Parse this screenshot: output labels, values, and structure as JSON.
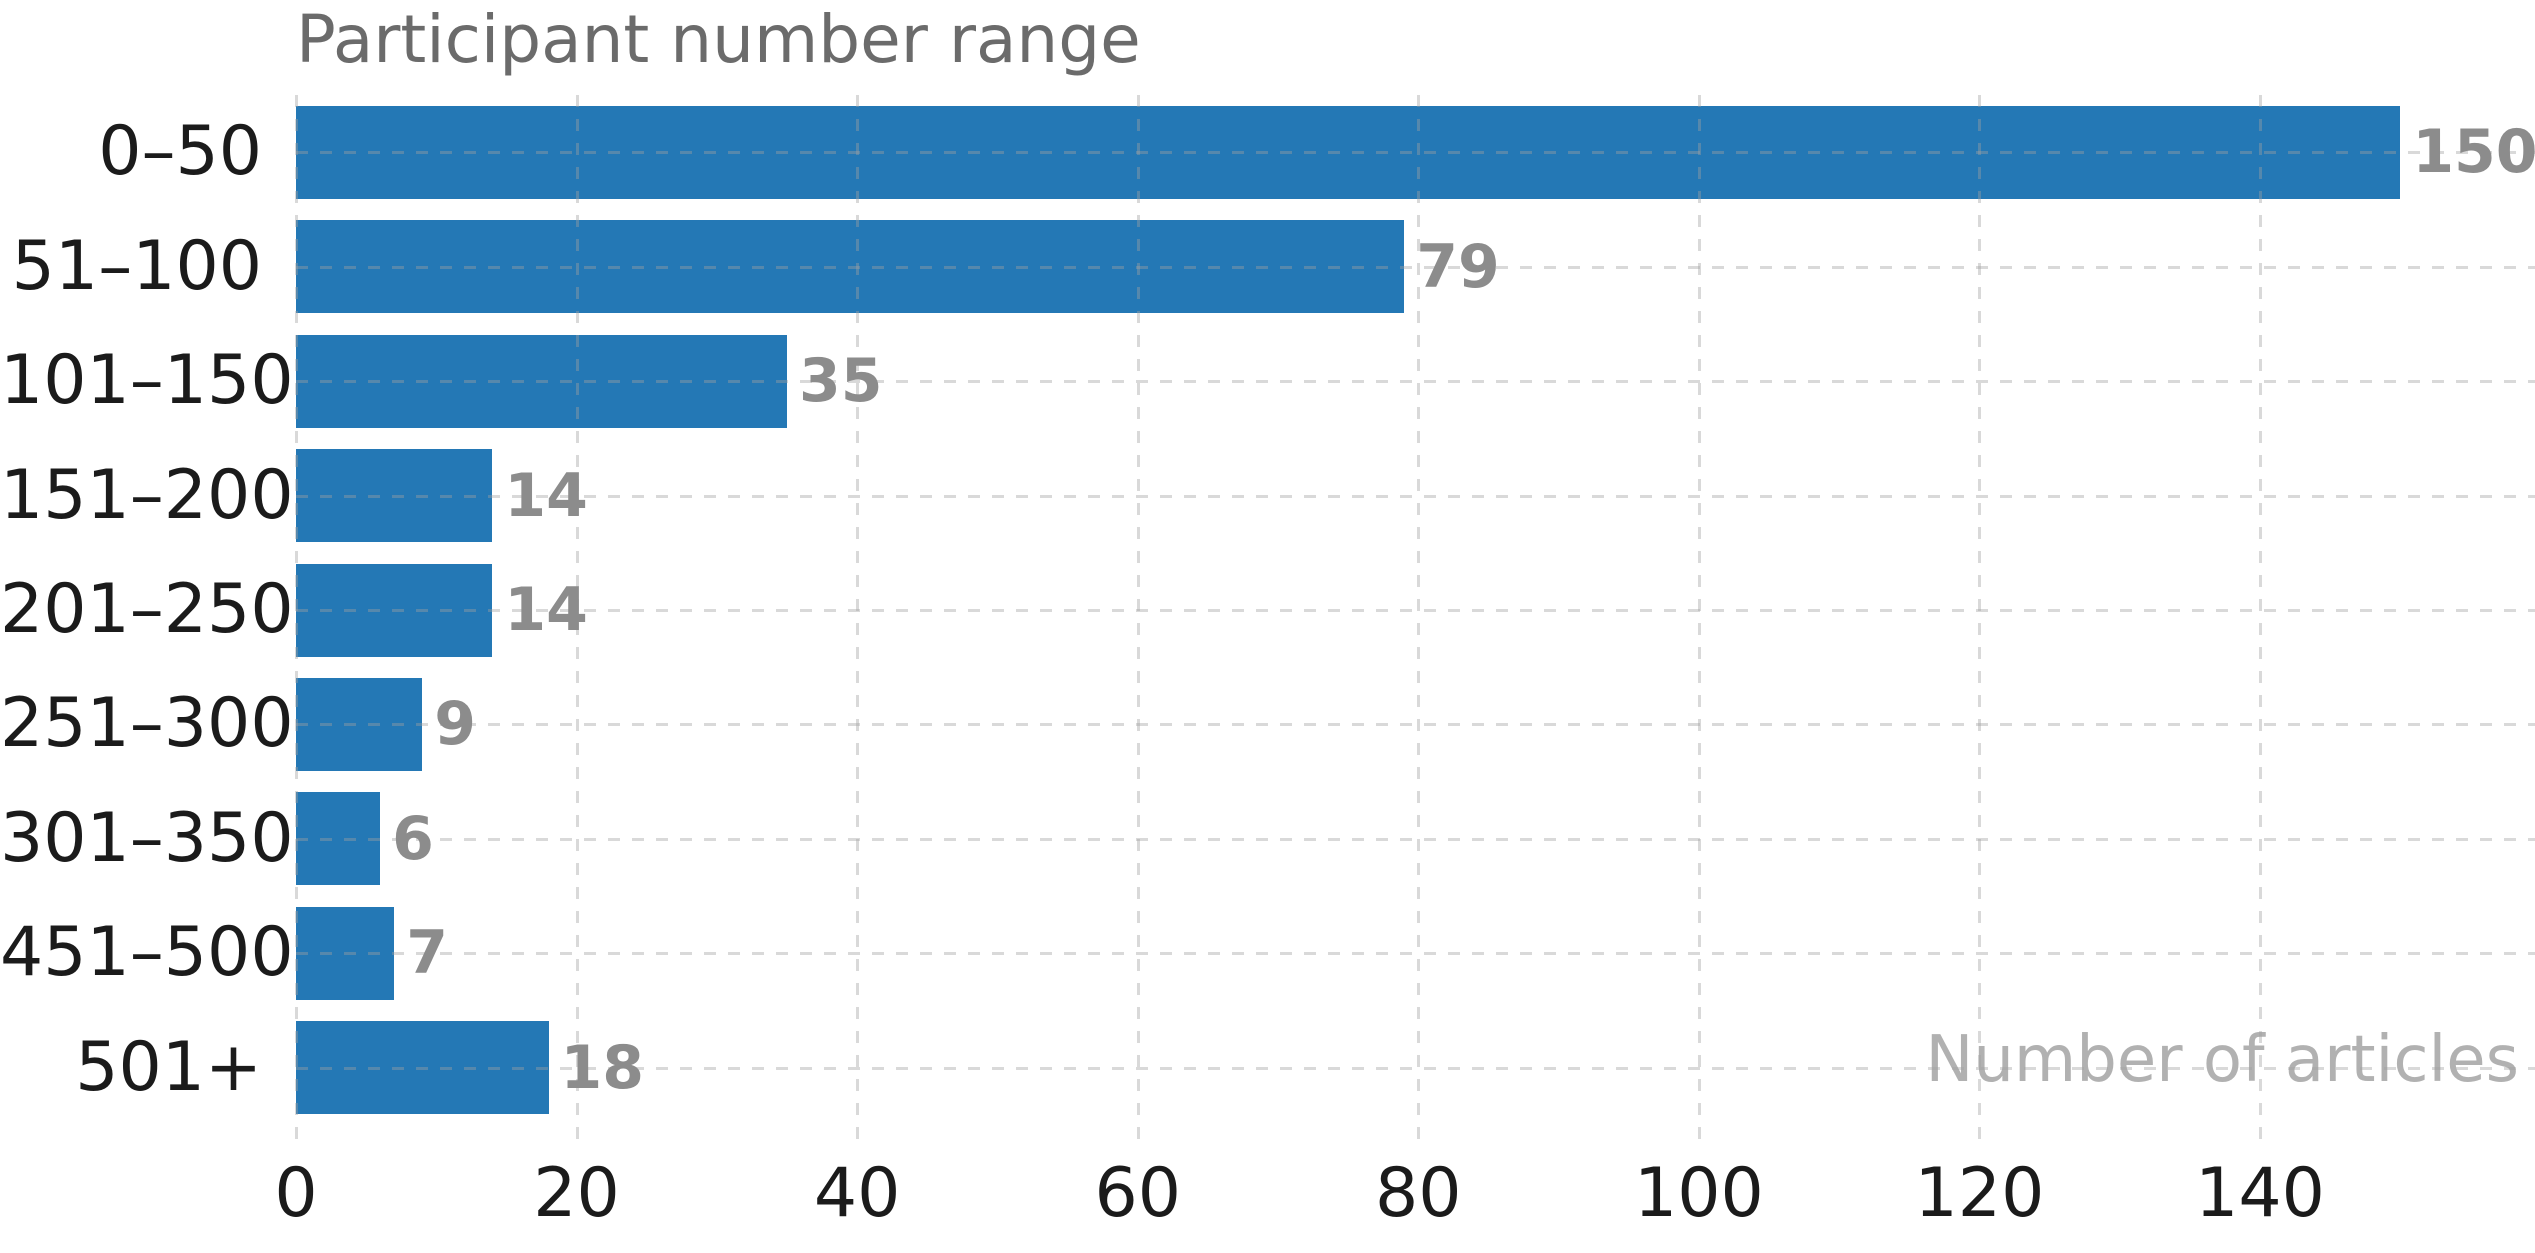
{
  "chart_data": {
    "type": "bar",
    "orientation": "horizontal",
    "title": "Participant number range",
    "xlabel": "Number of articles",
    "ylabel": "",
    "categories": [
      "0–50",
      "51–100",
      "101–150",
      "151–200",
      "201–250",
      "251–300",
      "301–350",
      "451–500",
      "501+"
    ],
    "values": [
      150,
      79,
      35,
      14,
      14,
      9,
      6,
      7,
      18
    ],
    "x_ticks": [
      0,
      20,
      40,
      60,
      80,
      100,
      120,
      140
    ],
    "xlim": [
      0,
      159.6
    ],
    "grid": {
      "vertical": true,
      "horizontal": true,
      "style": "dashed"
    },
    "legend": null,
    "value_labels_shown": true
  },
  "colors": {
    "bar": "#2478b5",
    "title_text": "#6b6b6b",
    "value_label_text": "#8c8c8c",
    "axis_label_text": "#b1b1b1",
    "tick_text": "#1b1b1b",
    "gridline": "#d9d9d9",
    "background": "#ffffff"
  }
}
